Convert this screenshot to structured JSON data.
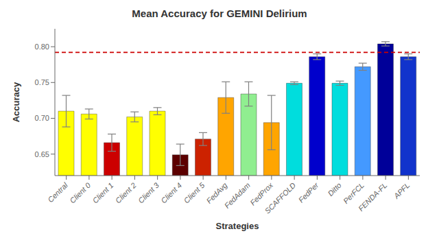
{
  "chart_data": {
    "type": "bar",
    "title": "Mean Accuracy for GEMINI Delirium",
    "xlabel": "Strategies",
    "ylabel": "Accuracy",
    "categories": [
      "Central",
      "Client 0",
      "Client 1",
      "Client 2",
      "Client 3",
      "Client 4",
      "Client 5",
      "FedAvg",
      "FedAdam",
      "FedProx",
      "SCAFFOLD",
      "FedPer",
      "Ditto",
      "PerFCL",
      "FENDA-FL",
      "APFL"
    ],
    "values": [
      0.71,
      0.706,
      0.666,
      0.702,
      0.71,
      0.649,
      0.671,
      0.729,
      0.734,
      0.694,
      0.749,
      0.786,
      0.749,
      0.772,
      0.804,
      0.786
    ],
    "errors": [
      0.022,
      0.007,
      0.012,
      0.007,
      0.005,
      0.015,
      0.009,
      0.022,
      0.017,
      0.038,
      0.002,
      0.004,
      0.003,
      0.005,
      0.003,
      0.004
    ],
    "colors": [
      "#FFFF00",
      "#FFFF00",
      "#CC0000",
      "#FFFF00",
      "#FFFF00",
      "#5C0000",
      "#CC2200",
      "#FFA500",
      "#90EE90",
      "#FFA500",
      "#00DDDD",
      "#0000CC",
      "#00DDDD",
      "#4499FF",
      "#000099",
      "#1133CC"
    ],
    "ylim": [
      0.62,
      0.825
    ],
    "yticks": [
      0.65,
      {
        "value": 0.7,
        "label": "0.70"
      },
      0.75,
      {
        "value": 0.8,
        "label": "0.80"
      }
    ],
    "grid": false,
    "hline": {
      "y": 0.792,
      "color": "#CC0000",
      "line_style": "dashed"
    }
  }
}
